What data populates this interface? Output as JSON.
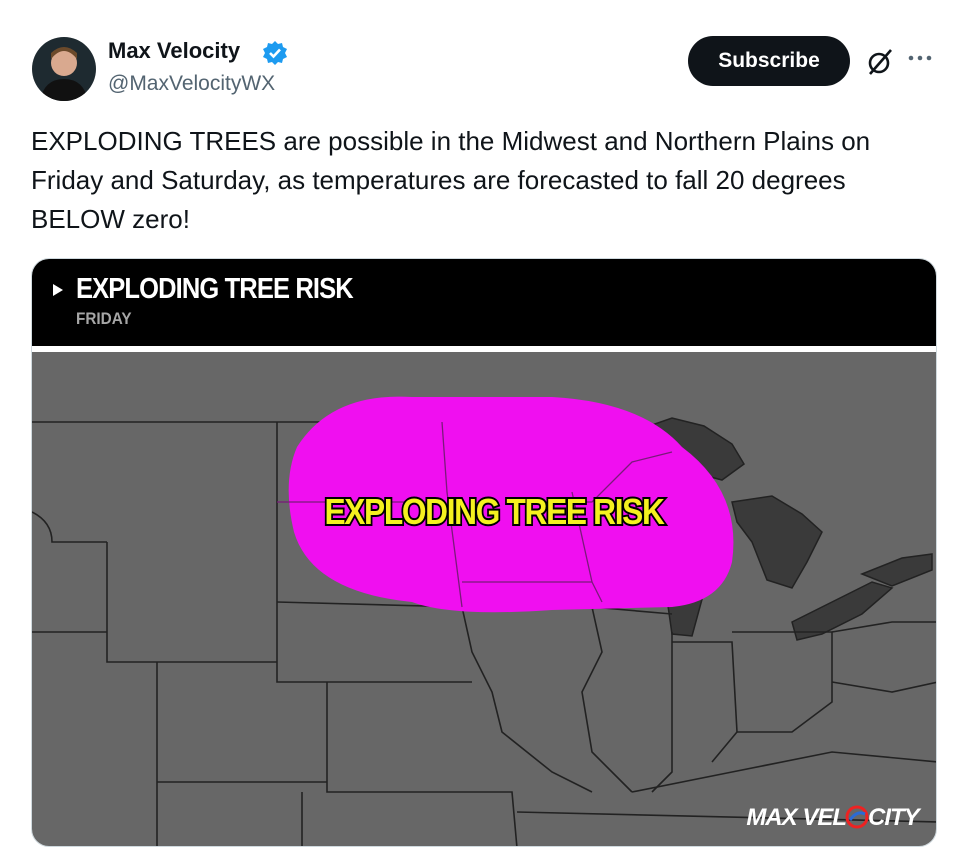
{
  "author": {
    "name": "Max Velocity",
    "handle": "@MaxVelocityWX"
  },
  "actions": {
    "subscribe": "Subscribe"
  },
  "post": {
    "text": "EXPLODING TREES are possible in the Midwest and Northern Plains on Friday and Saturday, as temperatures are forecasted to fall 20 degrees BELOW zero!"
  },
  "media": {
    "title": "EXPLODING TREE RISK",
    "subtitle": "FRIDAY",
    "map_label": "EXPLODING TREE RISK",
    "watermark": {
      "start": "MAX VEL",
      "end": "CITY"
    }
  }
}
